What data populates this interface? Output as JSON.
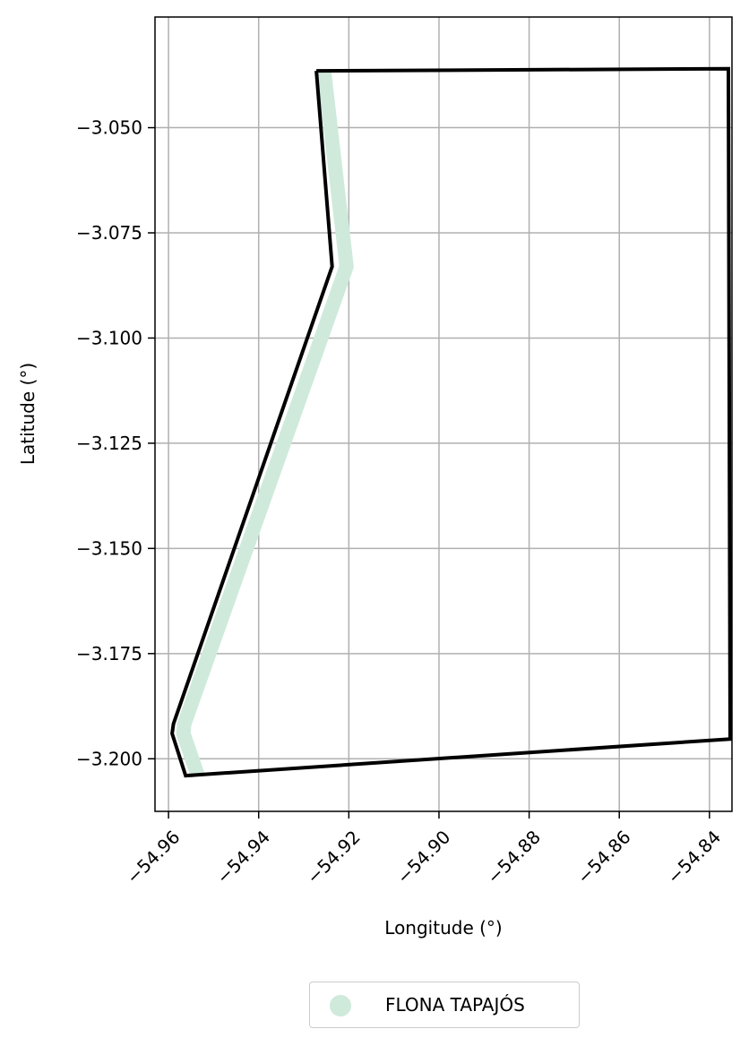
{
  "chart_data": {
    "type": "map",
    "xlabel": "Longitude (°)",
    "ylabel": "Latitude (°)",
    "xlim": [
      -54.963,
      -54.835
    ],
    "ylim": [
      -3.2125,
      -3.0237
    ],
    "x_ticks": [
      -54.96,
      -54.94,
      -54.92,
      -54.9,
      -54.88,
      -54.86,
      -54.84
    ],
    "x_tick_labels": [
      "−54.96",
      "−54.94",
      "−54.92",
      "−54.90",
      "−54.88",
      "−54.86",
      "−54.84"
    ],
    "y_ticks": [
      -3.05,
      -3.075,
      -3.1,
      -3.125,
      -3.15,
      -3.175,
      -3.2
    ],
    "y_tick_labels": [
      "−3.050",
      "−3.075",
      "−3.100",
      "−3.125",
      "−3.150",
      "−3.175",
      "−3.200"
    ],
    "grid": true,
    "legend": {
      "placement": "bottom-center",
      "entries": [
        "FLONA TAPAJÓS"
      ]
    },
    "colors": {
      "boundary": "#000000",
      "fill_band": "#cfeadb",
      "grid": "#b0b0b0"
    },
    "series": [
      {
        "name": "FLONA TAPAJÓS",
        "kind": "boundary",
        "points": [
          [
            -54.9272,
            -3.0365
          ],
          [
            -54.9237,
            -3.083
          ],
          [
            -54.9589,
            -3.1917
          ],
          [
            -54.9592,
            -3.194
          ],
          [
            -54.9562,
            -3.204
          ],
          [
            -54.8354,
            -3.1953
          ],
          [
            -54.8358,
            -3.036
          ],
          [
            -54.9272,
            -3.0365
          ]
        ]
      },
      {
        "name": "FLONA TAPAJÓS",
        "kind": "band",
        "points": [
          [
            -54.9255,
            -3.0365
          ],
          [
            -54.9205,
            -3.083
          ],
          [
            -54.9565,
            -3.1917
          ],
          [
            -54.9567,
            -3.194
          ],
          [
            -54.9535,
            -3.204
          ]
        ]
      }
    ]
  }
}
